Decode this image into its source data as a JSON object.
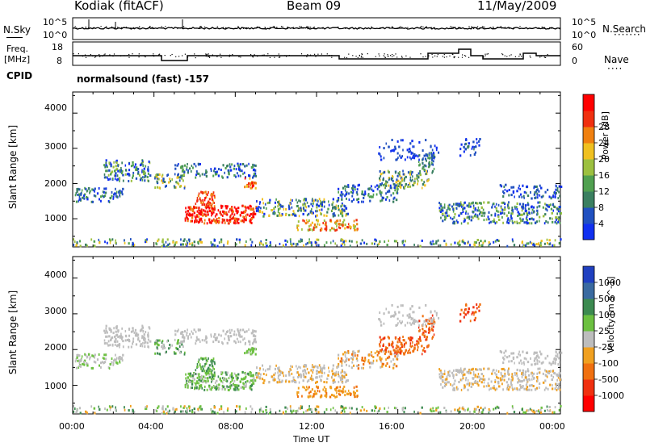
{
  "header": {
    "station": "Kodiak (fitACF)",
    "beam": "Beam 09",
    "date": "11/May/2009"
  },
  "nsky_panel": {
    "left_label": "N.Sky",
    "right_label": "N.Search",
    "left_ticks": [
      "10^5",
      "10^0"
    ],
    "right_ticks": [
      "10^5",
      "10^0"
    ]
  },
  "freq_panel": {
    "left_label_1": "Freq.",
    "left_label_2": "[MHz]",
    "right_label": "Nave",
    "left_ticks": [
      "18",
      "8"
    ],
    "right_ticks": [
      "60",
      "0"
    ]
  },
  "cpid": {
    "label": "CPID",
    "value": "normalsound (fast) -157"
  },
  "chart_data": [
    {
      "type": "heatmap",
      "name": "power",
      "xlabel": "",
      "ylabel": "Slant Range [km]",
      "x_ticks": [
        "00:00",
        "04:00",
        "08:00",
        "12:00",
        "16:00",
        "20:00",
        "00:00"
      ],
      "y_ticks": [
        "1000",
        "2000",
        "3000",
        "4000"
      ],
      "ylim": [
        200,
        4600
      ],
      "colorbar": {
        "label": "Power [dB]",
        "ticks": [
          "4",
          "8",
          "12",
          "16",
          "20",
          "24",
          "28"
        ],
        "colors": [
          "#1030f0",
          "#2050c0",
          "#3a7f60",
          "#50a050",
          "#9cc040",
          "#f0c020",
          "#f08010",
          "#f03010",
          "#ff0000"
        ]
      }
    },
    {
      "type": "heatmap",
      "name": "velocity",
      "xlabel": "Time UT",
      "ylabel": "Slant Range [km]",
      "x_ticks": [
        "00:00",
        "04:00",
        "08:00",
        "12:00",
        "16:00",
        "20:00",
        "00:00"
      ],
      "y_ticks": [
        "1000",
        "2000",
        "3000",
        "4000"
      ],
      "ylim": [
        200,
        4600
      ],
      "colorbar": {
        "label": "Velocity [m s^-1]",
        "ticks": [
          "1000",
          "500",
          "100",
          "25",
          "-25",
          "-100",
          "-500",
          "-1000"
        ],
        "colors": [
          "#2040c0",
          "#3a6aa0",
          "#3c8a50",
          "#6cc040",
          "#bdbdbd",
          "#f0a020",
          "#f07010",
          "#f03010",
          "#ff0000"
        ]
      }
    }
  ]
}
